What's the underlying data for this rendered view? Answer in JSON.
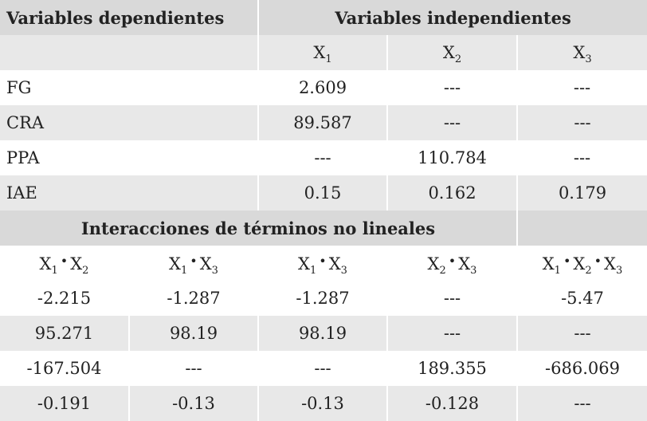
{
  "header": {
    "dependent_title": "Variables dependientes",
    "independent_title": "Variables independientes"
  },
  "variables": {
    "x1": {
      "base": "X",
      "sub": "1"
    },
    "x2": {
      "base": "X",
      "sub": "2"
    },
    "x3": {
      "base": "X",
      "sub": "3"
    }
  },
  "linear_rows": [
    {
      "label": "FG",
      "x1": "2.609",
      "x2": "---",
      "x3": "---"
    },
    {
      "label": "CRA",
      "x1": "89.587",
      "x2": "---",
      "x3": "---"
    },
    {
      "label": "PPA",
      "x1": "---",
      "x2": "110.784",
      "x3": "---"
    },
    {
      "label": "IAE",
      "x1": "0.15",
      "x2": "0.162",
      "x3": "0.179"
    }
  ],
  "interactions": {
    "title": "Interacciones de términos no lineales",
    "separator": "•",
    "rows": [
      [
        "-2.215",
        "-1.287",
        "-1.287",
        "---",
        "-5.47"
      ],
      [
        "95.271",
        "98.19",
        "98.19",
        "---",
        "---"
      ],
      [
        "-167.504",
        "---",
        "---",
        "189.355",
        "-686.069"
      ],
      [
        "-0.191",
        "-0.13",
        "-0.13",
        "-0.128",
        "---"
      ]
    ]
  }
}
